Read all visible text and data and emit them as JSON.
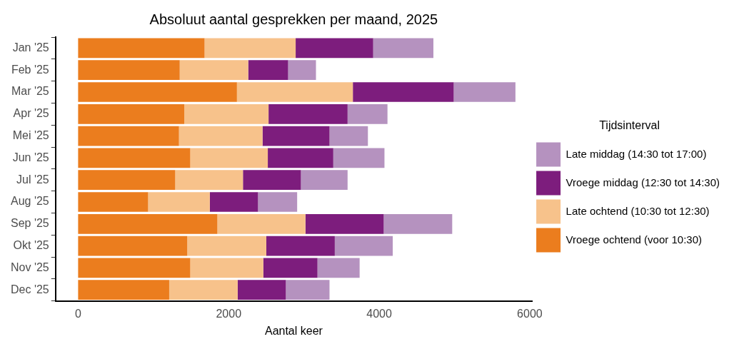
{
  "chart_data": {
    "type": "bar",
    "orientation": "horizontal",
    "stacked": true,
    "title": "Absoluut aantal gesprekken per maand, 2025",
    "xlabel": "Aantal keer",
    "legend_title": "Tijdsinterval",
    "legend": "right",
    "grid": false,
    "categories": [
      "Jan '25",
      "Feb '25",
      "Mar '25",
      "Apr '25",
      "Mei '25",
      "Jun '25",
      "Jul '25",
      "Aug '25",
      "Sep '25",
      "Okt '25",
      "Nov '25",
      "Dec '25"
    ],
    "xlim": [
      -300,
      6030
    ],
    "xticks": [
      0,
      2000,
      4000,
      6000
    ],
    "series": [
      {
        "name": "Vroege ochtend (voor 10:30)",
        "color": "#eb7d1e",
        "values": [
          1680,
          1350,
          2110,
          1410,
          1340,
          1490,
          1290,
          930,
          1850,
          1450,
          1490,
          1210
        ]
      },
      {
        "name": "Late ochtend (10:30 tot 12:30)",
        "color": "#f7c28b",
        "values": [
          1210,
          910,
          1540,
          1120,
          1110,
          1030,
          900,
          820,
          1170,
          1050,
          970,
          910
        ]
      },
      {
        "name": "Vroege middag (12:30 tot 14:30)",
        "color": "#7d1d7d",
        "values": [
          1030,
          530,
          1340,
          1050,
          890,
          870,
          770,
          640,
          1040,
          910,
          720,
          640
        ]
      },
      {
        "name": "Late middag (14:30 tot 17:00)",
        "color": "#b592bf",
        "values": [
          800,
          370,
          820,
          530,
          510,
          680,
          620,
          520,
          910,
          770,
          560,
          580
        ]
      }
    ]
  }
}
